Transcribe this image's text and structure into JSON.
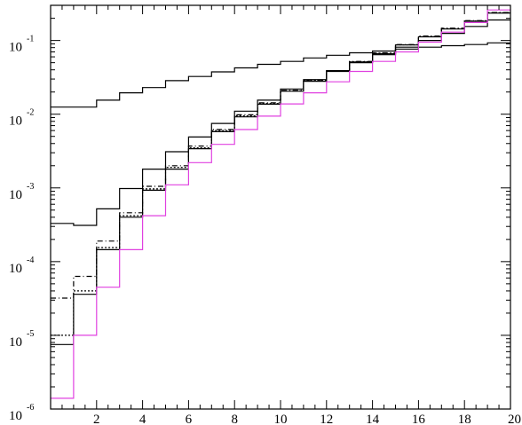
{
  "chart_data": {
    "type": "line",
    "step": true,
    "xlim": [
      0,
      20
    ],
    "ylim": [
      1e-06,
      0.3
    ],
    "ylog": true,
    "x_ticks": [
      2,
      4,
      6,
      8,
      10,
      12,
      14,
      16,
      18,
      20
    ],
    "x_tick_labels": [
      "2",
      "4",
      "6",
      "8",
      "10",
      "12",
      "14",
      "16",
      "18",
      "20"
    ],
    "y_tick_bases": [
      "10",
      "10",
      "10",
      "10",
      "10",
      "10"
    ],
    "y_tick_exponents": [
      "-6",
      "-5",
      "-4",
      "-3",
      "-2",
      "-1"
    ],
    "y_tick_values": [
      1e-06,
      1e-05,
      0.0001,
      0.001,
      0.01,
      0.1
    ],
    "bin_edges": [
      0,
      1,
      2,
      3,
      4,
      5,
      6,
      7,
      8,
      9,
      10,
      11,
      12,
      13,
      14,
      15,
      16,
      17,
      18,
      19,
      20
    ],
    "series": [
      {
        "color": "#000000",
        "dash": "",
        "values": [
          0.0125,
          0.0125,
          0.0155,
          0.0195,
          0.023,
          0.0285,
          0.0325,
          0.0375,
          0.0425,
          0.0475,
          0.052,
          0.058,
          0.063,
          0.068,
          0.072,
          0.0765,
          0.081,
          0.085,
          0.088,
          0.093
        ]
      },
      {
        "color": "#000000",
        "dash": "",
        "values": [
          0.00033,
          0.00031,
          0.00052,
          0.00098,
          0.0018,
          0.0031,
          0.0049,
          0.0075,
          0.011,
          0.0155,
          0.022,
          0.0295,
          0.039,
          0.05,
          0.064,
          0.081,
          0.1,
          0.125,
          0.155,
          0.19
        ]
      },
      {
        "color": "#000000",
        "dash": "",
        "values": [
          7.5e-06,
          3.6e-05,
          0.000145,
          0.0004,
          0.00093,
          0.0018,
          0.0034,
          0.0058,
          0.0092,
          0.0137,
          0.0205,
          0.028,
          0.038,
          0.051,
          0.066,
          0.087,
          0.112,
          0.143,
          0.182,
          0.235
        ]
      },
      {
        "color": "#000000",
        "dash": "2,2",
        "values": [
          1e-05,
          4e-05,
          0.000155,
          0.00042,
          0.00097,
          0.0019,
          0.0035,
          0.006,
          0.0095,
          0.014,
          0.0208,
          0.0285,
          0.0385,
          0.0515,
          0.067,
          0.0875,
          0.113,
          0.145,
          0.184,
          0.238
        ]
      },
      {
        "color": "#000000",
        "dash": "6,3,1,3",
        "values": [
          3.2e-05,
          6.3e-05,
          0.00019,
          0.00046,
          0.00105,
          0.002,
          0.0037,
          0.0062,
          0.0098,
          0.0143,
          0.021,
          0.029,
          0.039,
          0.052,
          0.068,
          0.088,
          0.115,
          0.147,
          0.186,
          0.24
        ]
      },
      {
        "color": "#e040e0",
        "dash": "",
        "values": [
          1.4e-06,
          1e-05,
          4.5e-05,
          0.000145,
          0.00042,
          0.0011,
          0.0022,
          0.0039,
          0.0062,
          0.0094,
          0.0138,
          0.0195,
          0.0275,
          0.038,
          0.052,
          0.07,
          0.095,
          0.13,
          0.175,
          0.26
        ]
      }
    ]
  }
}
